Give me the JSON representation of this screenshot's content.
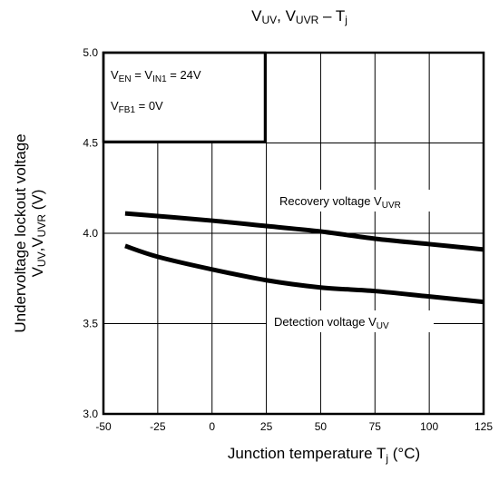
{
  "chart_data": {
    "type": "line",
    "title": {
      "v1": "V",
      "s1": "UV",
      "sep": ", ",
      "v2": "V",
      "s2": "UVR",
      "dash": " – ",
      "t": "T",
      "ts": "j"
    },
    "xlabel": {
      "text": "Junction temperature",
      "t": "T",
      "ts": "j",
      "unit": "(°C)"
    },
    "ylabel": {
      "line1": "Undervoltage lockout voltage",
      "v1": "V",
      "s1": "UV",
      "comma": ",",
      "v2": "V",
      "s2": "UVR",
      "unit": "(V)"
    },
    "xlim": [
      -50,
      125
    ],
    "ylim": [
      3.0,
      5.0
    ],
    "xticks": [
      "-50",
      "-25",
      "0",
      "25",
      "50",
      "75",
      "100",
      "125"
    ],
    "xtick_values": [
      -50,
      -25,
      0,
      25,
      50,
      75,
      100,
      125
    ],
    "yticks": [
      "3.0",
      "3.5",
      "4.0",
      "4.5",
      "5.0"
    ],
    "ytick_values": [
      3.0,
      3.5,
      4.0,
      4.5,
      5.0
    ],
    "conditions": {
      "line1": {
        "a": "V",
        "as": "EN",
        "mid": " = V",
        "bs": "IN1",
        "val": " = 24V"
      },
      "line2": {
        "a": "V",
        "as": "FB1",
        "val": " = 0V"
      }
    },
    "series": [
      {
        "name": "Recovery voltage VUVR",
        "label": {
          "text": "Recovery voltage V",
          "sub": "UVR"
        },
        "x": [
          -40,
          0,
          25,
          50,
          75,
          100,
          125
        ],
        "y": [
          4.11,
          4.07,
          4.04,
          4.01,
          3.97,
          3.94,
          3.91
        ]
      },
      {
        "name": "Detection voltage VUV",
        "label": {
          "text": "Detection voltage V",
          "sub": "UV"
        },
        "x": [
          -40,
          -25,
          0,
          25,
          50,
          75,
          100,
          125
        ],
        "y": [
          3.93,
          3.87,
          3.8,
          3.74,
          3.7,
          3.68,
          3.65,
          3.62
        ]
      }
    ],
    "grid": true
  }
}
